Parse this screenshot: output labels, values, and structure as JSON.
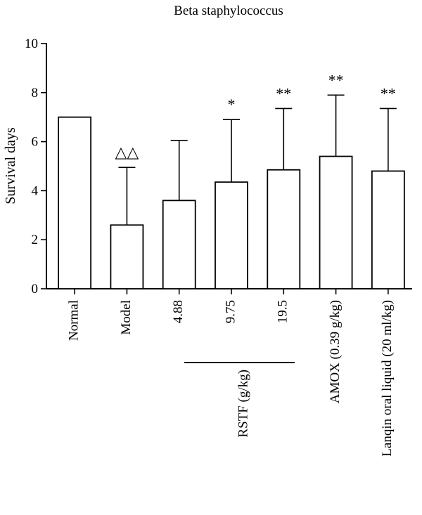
{
  "chart_data": {
    "type": "bar",
    "title": "Beta staphylococcus",
    "xlabel": "",
    "ylabel": "Survival days",
    "ylim": [
      0,
      10
    ],
    "yticks": [
      "0",
      "2",
      "4",
      "6",
      "8",
      "10"
    ],
    "categories": [
      "Normal",
      "Model",
      "4.88",
      "9.75",
      "19.5",
      "AMOX (0.39 g/kg)",
      "Lanqin oral liquid (20 ml/kg)"
    ],
    "values": [
      7.0,
      2.6,
      3.6,
      4.35,
      4.85,
      5.4,
      4.8
    ],
    "error_upper": [
      0,
      2.35,
      2.45,
      2.55,
      2.5,
      2.5,
      2.55
    ],
    "annotations": [
      "",
      "△△",
      "",
      "*",
      "**",
      "**",
      "**"
    ],
    "group_label": "RSTF (g/kg)",
    "grid": false,
    "legend": "none"
  }
}
